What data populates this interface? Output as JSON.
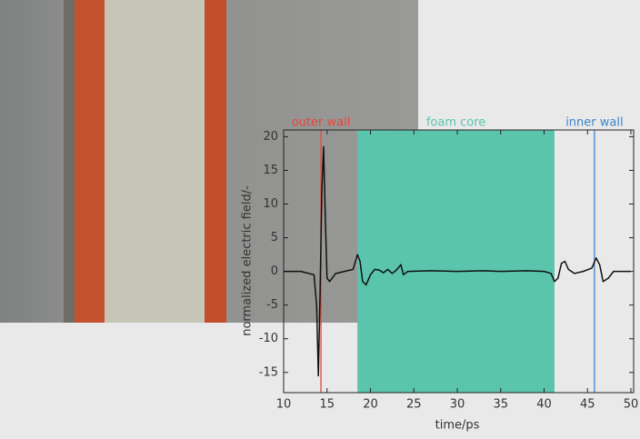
{
  "chart_data": {
    "type": "line",
    "x_label": "time/ps",
    "y_label": "normalized electric field/-",
    "x": [
      10,
      12,
      13.5,
      13.8,
      14.0,
      14.2,
      14.4,
      14.6,
      14.8,
      15.0,
      15.3,
      16,
      17,
      18,
      18.5,
      18.8,
      19.1,
      19.5,
      20,
      20.5,
      21,
      21.5,
      22,
      22.5,
      23,
      23.5,
      23.8,
      24.3,
      27,
      30,
      33,
      35,
      38,
      40,
      40.8,
      41.2,
      41.6,
      42,
      42.4,
      42.8,
      43.5,
      44.5,
      45.5,
      46,
      46.4,
      46.8,
      47.4,
      48,
      50
    ],
    "values": [
      0,
      0,
      -0.5,
      -5,
      -15.5,
      -3,
      12,
      18.5,
      8,
      -1,
      -1.5,
      -0.3,
      0,
      0.3,
      2.5,
      1.5,
      -1.5,
      -2,
      -0.5,
      0.3,
      0.2,
      -0.2,
      0.3,
      -0.3,
      0.2,
      1,
      -0.5,
      0,
      0.1,
      0,
      0.1,
      0,
      0.1,
      0,
      -0.3,
      -1.5,
      -1,
      1.2,
      1.5,
      0.3,
      -0.3,
      0,
      0.5,
      2,
      1,
      -1.5,
      -1,
      0,
      0
    ],
    "color": "#111111",
    "xlim": [
      10,
      50
    ],
    "ylim": [
      -18,
      21
    ],
    "xticks": [
      10,
      15,
      20,
      25,
      30,
      35,
      40,
      45,
      50
    ],
    "yticks": [
      -15,
      -10,
      -5,
      0,
      5,
      10,
      15,
      20
    ],
    "annotations": [
      {
        "text": "outer wall",
        "kind": "line",
        "x": 14.3,
        "color": "#e5473c"
      },
      {
        "text": "foam core",
        "kind": "band",
        "x": [
          18.5,
          41.2
        ],
        "color": "#5bc4ad"
      },
      {
        "text": "inner wall",
        "kind": "line",
        "x": 45.8,
        "color": "#3b86c9"
      }
    ]
  }
}
